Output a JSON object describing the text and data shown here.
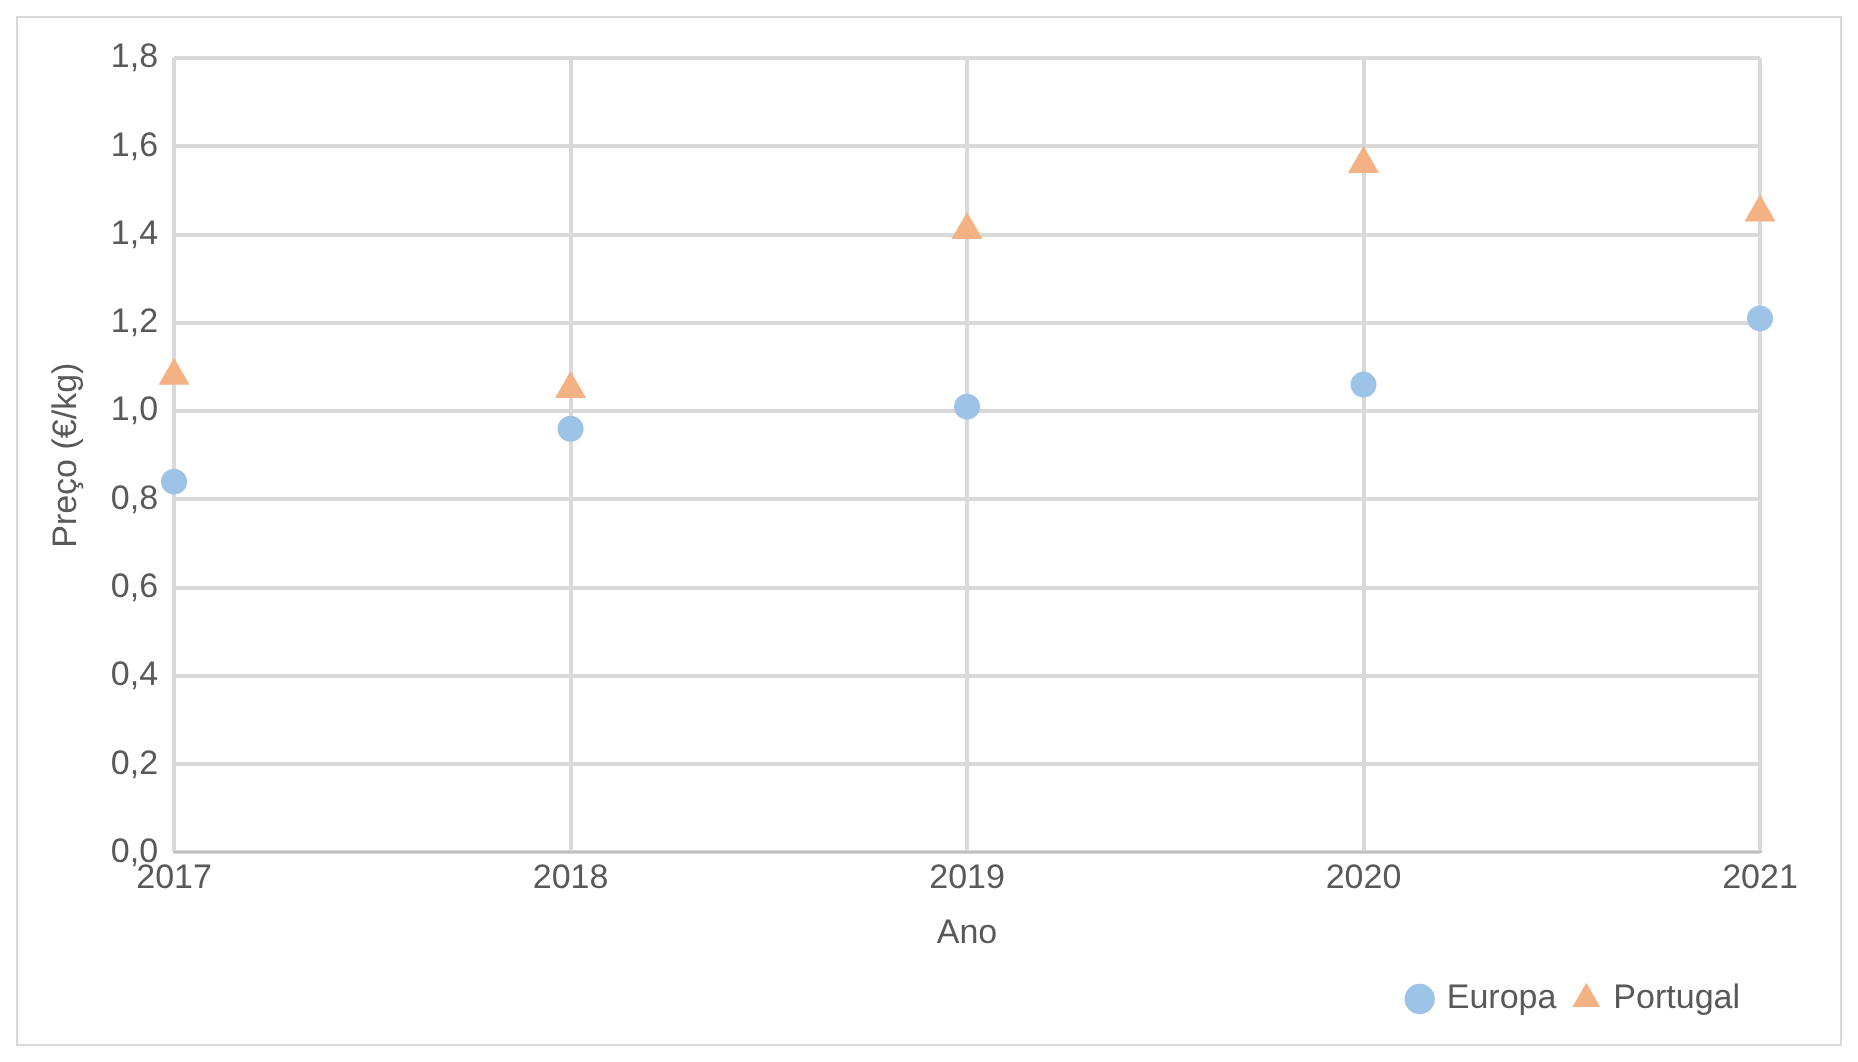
{
  "chart_data": {
    "type": "scatter",
    "xlabel": "Ano",
    "ylabel": "Preço (€/kg)",
    "x": [
      2017,
      2018,
      2019,
      2020,
      2021
    ],
    "xlim": [
      2017,
      2021
    ],
    "xticks": [
      2017,
      2018,
      2019,
      2020,
      2021
    ],
    "ylim": [
      0,
      1.8
    ],
    "yticks": [
      {
        "value": 0,
        "label": "0,0"
      },
      {
        "value": 0.2,
        "label": "0,2"
      },
      {
        "value": 0.4,
        "label": "0,4"
      },
      {
        "value": 0.6,
        "label": "0,6"
      },
      {
        "value": 0.8,
        "label": "0,8"
      },
      {
        "value": 1,
        "label": "1,0"
      },
      {
        "value": 1.2,
        "label": "1,2"
      },
      {
        "value": 1.4,
        "label": "1,4"
      },
      {
        "value": 1.6,
        "label": "1,6"
      },
      {
        "value": 1.8,
        "label": "1,8"
      }
    ],
    "grid": true,
    "legend": "bottom right",
    "series": [
      {
        "name": "Europa",
        "color": "#9dc3e6",
        "marker": "circle",
        "values": [
          0.84,
          0.96,
          1.01,
          1.06,
          1.21
        ]
      },
      {
        "name": "Portugal",
        "color": "#f4b183",
        "marker": "triangle",
        "values": [
          1.08,
          1.05,
          1.41,
          1.56,
          1.45
        ]
      }
    ]
  }
}
